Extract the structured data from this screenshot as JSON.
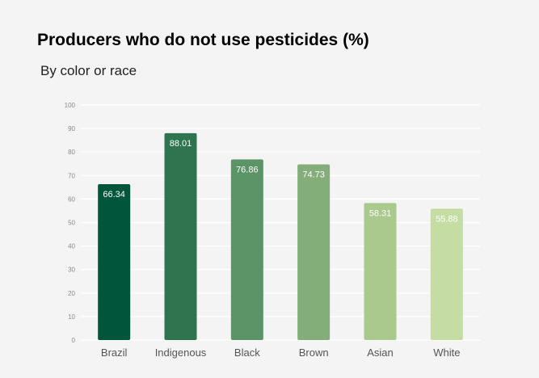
{
  "chart_data": {
    "type": "bar",
    "title": "Producers who do not use pesticides (%)",
    "subtitle": "By color or race",
    "categories": [
      "Brazil",
      "Indigenous",
      "Black",
      "Brown",
      "Asian",
      "White"
    ],
    "values": [
      66.34,
      88.01,
      76.86,
      74.73,
      58.31,
      55.88
    ],
    "data_labels": [
      "66.34",
      "88.01",
      "76.86",
      "74.73",
      "58.31",
      "55.88"
    ],
    "bar_colors": [
      "#00563a",
      "#2e744f",
      "#5a9467",
      "#83ad79",
      "#aac98d",
      "#c5dca3"
    ],
    "xlabel": "",
    "ylabel": "",
    "ylim": [
      0,
      100
    ],
    "yticks": [
      0,
      10,
      20,
      30,
      40,
      50,
      60,
      70,
      80,
      90,
      100
    ],
    "grid": true,
    "legend": "none"
  }
}
